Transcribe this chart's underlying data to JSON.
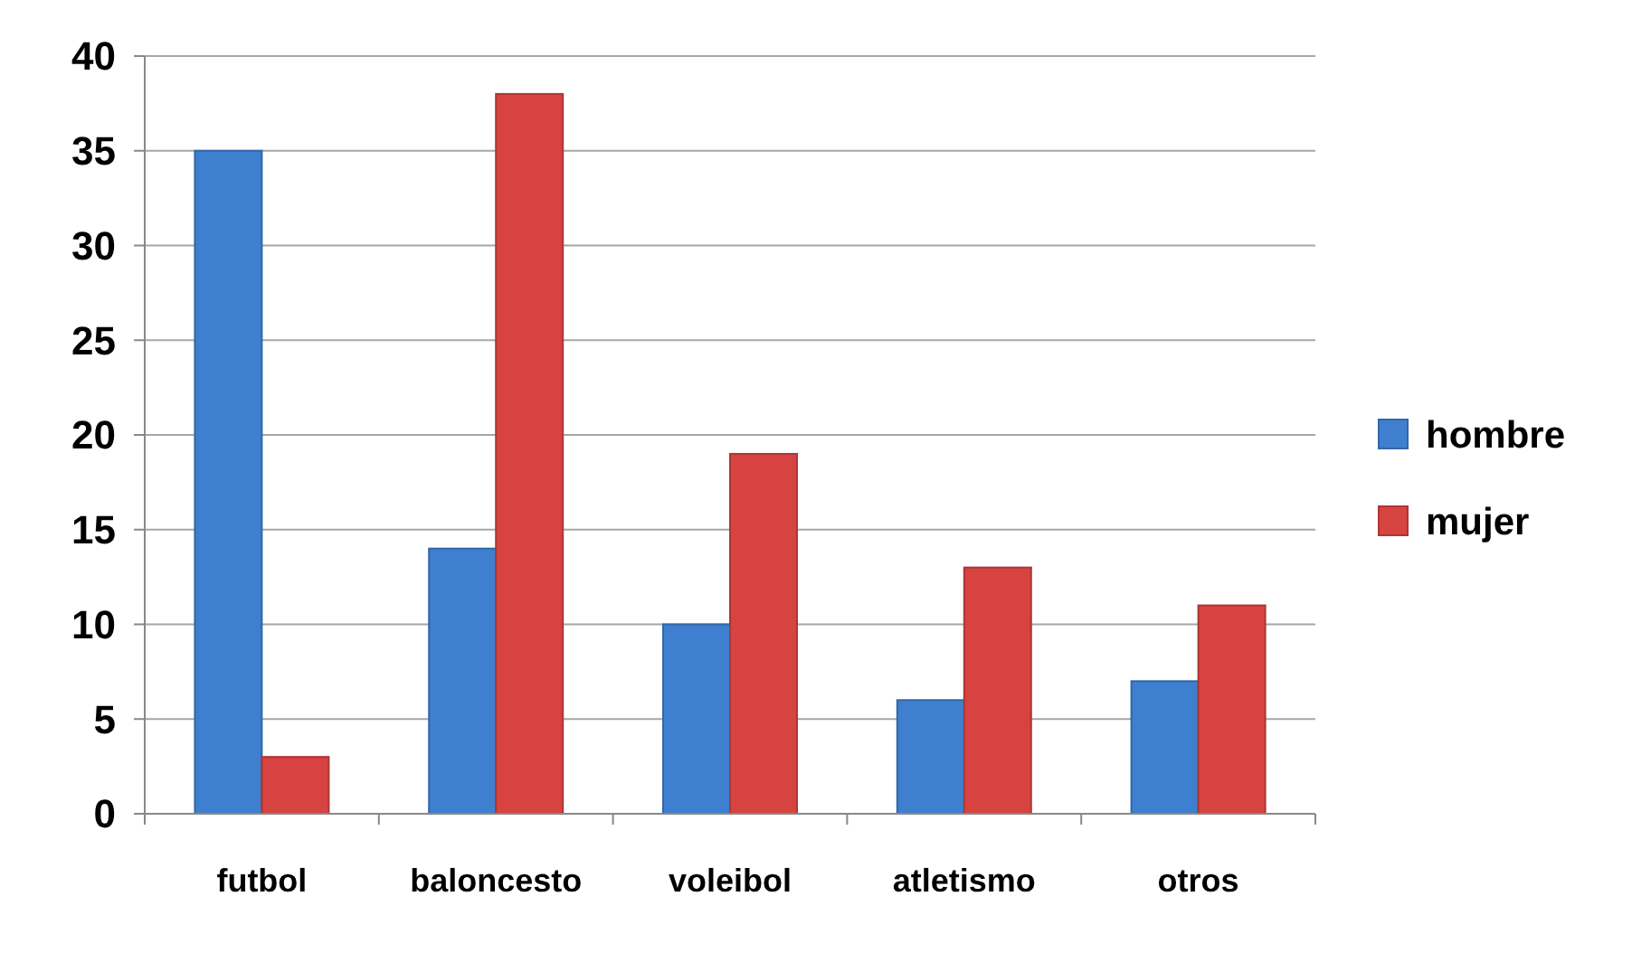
{
  "chart_data": {
    "type": "bar",
    "categories": [
      "futbol",
      "baloncesto",
      "voleibol",
      "atletismo",
      "otros"
    ],
    "series": [
      {
        "name": "hombre",
        "color": "#3f7fcf",
        "values": [
          35,
          14,
          10,
          6,
          7
        ]
      },
      {
        "name": "mujer",
        "color": "#d64340",
        "values": [
          3,
          38,
          19,
          13,
          11
        ]
      }
    ],
    "ylim": [
      0,
      40
    ],
    "yticks": [
      0,
      5,
      10,
      15,
      20,
      25,
      30,
      35,
      40
    ],
    "grid": "y",
    "legend": "right"
  }
}
